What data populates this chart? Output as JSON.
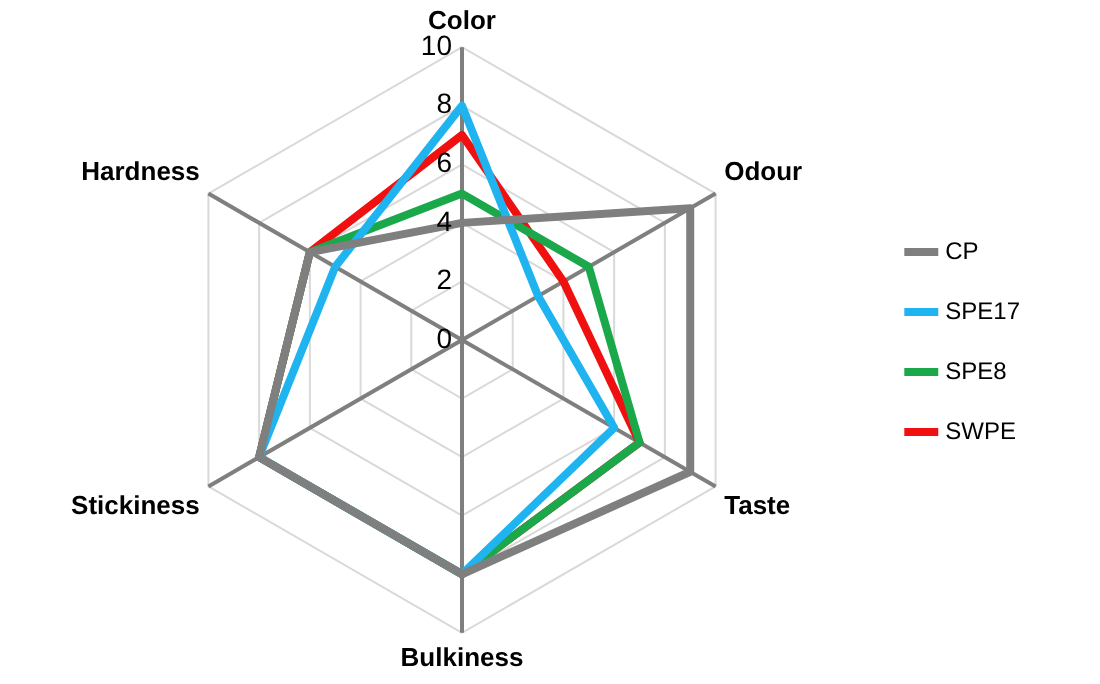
{
  "chart_data": {
    "type": "radar",
    "categories": [
      "Color",
      "Odour",
      "Taste",
      "Bulkiness",
      "Stickiness",
      "Hardness"
    ],
    "series": [
      {
        "name": "CP",
        "color": "#7f7f7f",
        "values": [
          4,
          9,
          9,
          8,
          8,
          6
        ]
      },
      {
        "name": "SPE17",
        "color": "#1fb4f0",
        "values": [
          8,
          3,
          6,
          8,
          8,
          5
        ]
      },
      {
        "name": "SPE8",
        "color": "#1aa84a",
        "values": [
          5,
          5,
          7,
          8,
          8,
          6
        ]
      },
      {
        "name": "SWPE",
        "color": "#f01010",
        "values": [
          7,
          4,
          7,
          8,
          8,
          6
        ]
      }
    ],
    "ylim": [
      0,
      10
    ],
    "yticks": [
      0,
      2,
      4,
      6,
      8,
      10
    ],
    "grid": true,
    "legend": "right",
    "marker": "none"
  }
}
